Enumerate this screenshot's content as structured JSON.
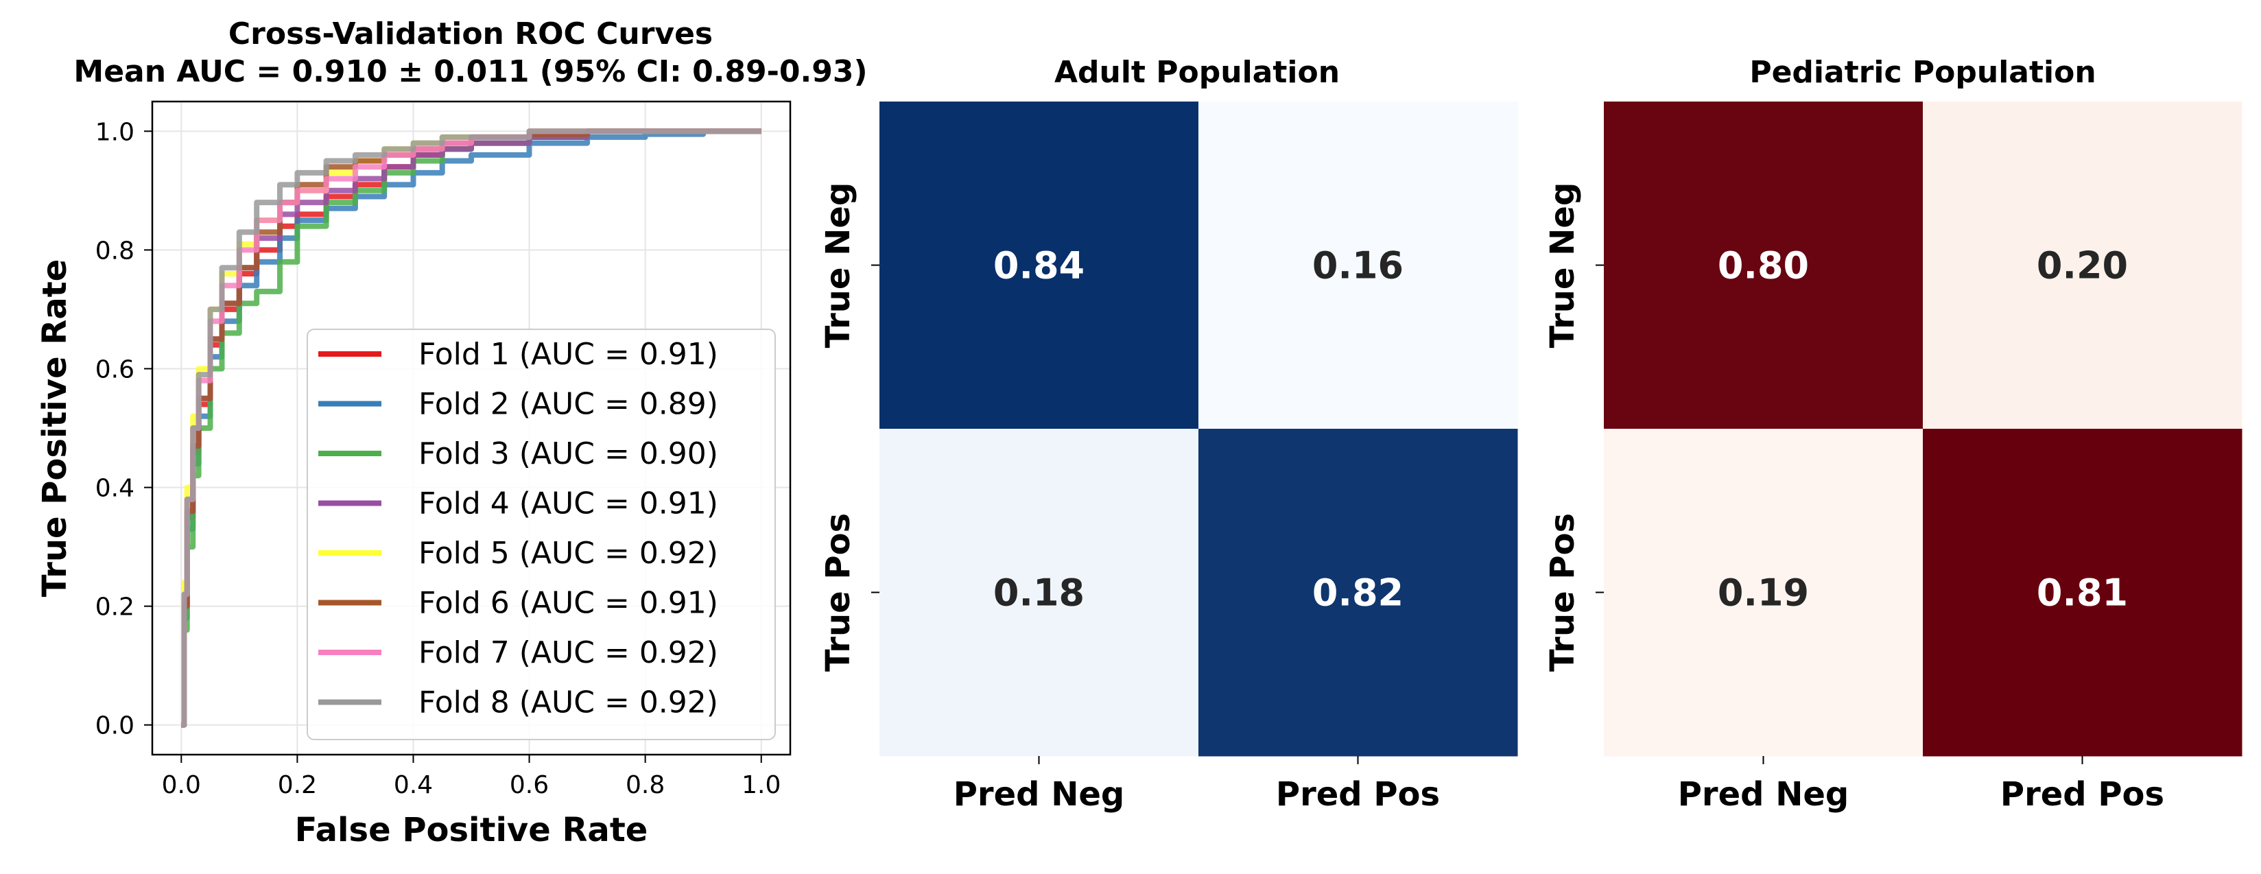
{
  "chart_data": [
    {
      "type": "line",
      "title": "Cross-Validation ROC Curves\nMean AUC = 0.910 ± 0.011 (95% CI: 0.89-0.93)",
      "xlabel": "False Positive Rate",
      "ylabel": "True Positive Rate",
      "xlim": [
        -0.05,
        1.05
      ],
      "ylim": [
        -0.05,
        1.05
      ],
      "xticks": [
        "0.0",
        "0.2",
        "0.4",
        "0.6",
        "0.8",
        "1.0"
      ],
      "yticks": [
        "0.0",
        "0.2",
        "0.4",
        "0.6",
        "0.8",
        "1.0"
      ],
      "grid": true,
      "legend": "lower-right",
      "series": [
        {
          "name": "Fold 1 (AUC = 0.91)",
          "color": "#e41a1c",
          "x": [
            0,
            0.005,
            0.01,
            0.02,
            0.03,
            0.05,
            0.07,
            0.1,
            0.13,
            0.17,
            0.2,
            0.25,
            0.3,
            0.35,
            0.4,
            0.45,
            0.5,
            0.6,
            0.7,
            0.8,
            0.9,
            1.0
          ],
          "y": [
            0,
            0.2,
            0.35,
            0.46,
            0.54,
            0.64,
            0.7,
            0.76,
            0.8,
            0.84,
            0.86,
            0.89,
            0.91,
            0.94,
            0.96,
            0.97,
            0.98,
            0.99,
            1.0,
            1.0,
            1.0,
            1.0
          ]
        },
        {
          "name": "Fold 2 (AUC = 0.89)",
          "color": "#377eb8",
          "x": [
            0,
            0.005,
            0.01,
            0.02,
            0.03,
            0.05,
            0.07,
            0.1,
            0.13,
            0.17,
            0.2,
            0.25,
            0.3,
            0.35,
            0.4,
            0.45,
            0.5,
            0.6,
            0.7,
            0.8,
            0.9,
            1.0
          ],
          "y": [
            0,
            0.18,
            0.33,
            0.44,
            0.52,
            0.62,
            0.68,
            0.74,
            0.78,
            0.82,
            0.85,
            0.87,
            0.89,
            0.91,
            0.93,
            0.95,
            0.96,
            0.98,
            0.99,
            0.995,
            1.0,
            1.0
          ]
        },
        {
          "name": "Fold 3 (AUC = 0.90)",
          "color": "#4daf4a",
          "x": [
            0,
            0.005,
            0.01,
            0.02,
            0.03,
            0.05,
            0.07,
            0.1,
            0.13,
            0.17,
            0.2,
            0.25,
            0.3,
            0.35,
            0.4,
            0.45,
            0.5,
            0.6,
            0.7,
            0.8,
            0.9,
            1.0
          ],
          "y": [
            0,
            0.16,
            0.3,
            0.42,
            0.5,
            0.6,
            0.66,
            0.71,
            0.73,
            0.78,
            0.84,
            0.88,
            0.9,
            0.93,
            0.95,
            0.97,
            0.98,
            0.99,
            1.0,
            1.0,
            1.0,
            1.0
          ]
        },
        {
          "name": "Fold 4 (AUC = 0.91)",
          "color": "#984ea3",
          "x": [
            0,
            0.005,
            0.01,
            0.02,
            0.03,
            0.05,
            0.07,
            0.1,
            0.13,
            0.17,
            0.2,
            0.25,
            0.3,
            0.35,
            0.4,
            0.45,
            0.5,
            0.6,
            0.7,
            0.8,
            0.9,
            1.0
          ],
          "y": [
            0,
            0.2,
            0.36,
            0.47,
            0.55,
            0.65,
            0.71,
            0.77,
            0.82,
            0.86,
            0.88,
            0.9,
            0.92,
            0.94,
            0.96,
            0.97,
            0.98,
            0.99,
            1.0,
            1.0,
            1.0,
            1.0
          ]
        },
        {
          "name": "Fold 5 (AUC = 0.92)",
          "color": "#ffff33",
          "x": [
            0,
            0.005,
            0.01,
            0.02,
            0.03,
            0.05,
            0.07,
            0.1,
            0.13,
            0.17,
            0.2,
            0.25,
            0.3,
            0.35,
            0.4,
            0.45,
            0.5,
            0.6,
            0.7,
            0.8,
            0.9,
            1.0
          ],
          "y": [
            0,
            0.24,
            0.4,
            0.52,
            0.6,
            0.7,
            0.76,
            0.81,
            0.85,
            0.88,
            0.9,
            0.93,
            0.95,
            0.97,
            0.98,
            0.99,
            0.99,
            1.0,
            1.0,
            1.0,
            1.0,
            1.0
          ]
        },
        {
          "name": "Fold 6 (AUC = 0.91)",
          "color": "#a65628",
          "x": [
            0,
            0.005,
            0.01,
            0.02,
            0.03,
            0.05,
            0.07,
            0.1,
            0.13,
            0.17,
            0.2,
            0.25,
            0.3,
            0.35,
            0.4,
            0.45,
            0.5,
            0.6,
            0.7,
            0.8,
            0.9,
            1.0
          ],
          "y": [
            0,
            0.2,
            0.36,
            0.47,
            0.55,
            0.65,
            0.71,
            0.77,
            0.83,
            0.88,
            0.91,
            0.94,
            0.95,
            0.96,
            0.97,
            0.98,
            0.99,
            0.995,
            1.0,
            1.0,
            1.0,
            1.0
          ]
        },
        {
          "name": "Fold 7 (AUC = 0.92)",
          "color": "#f781bf",
          "x": [
            0,
            0.005,
            0.01,
            0.02,
            0.03,
            0.05,
            0.07,
            0.1,
            0.13,
            0.17,
            0.2,
            0.25,
            0.3,
            0.35,
            0.4,
            0.45,
            0.5,
            0.6,
            0.7,
            0.8,
            0.9,
            1.0
          ],
          "y": [
            0,
            0.22,
            0.38,
            0.5,
            0.58,
            0.68,
            0.74,
            0.8,
            0.85,
            0.88,
            0.9,
            0.92,
            0.94,
            0.96,
            0.97,
            0.98,
            0.99,
            1.0,
            1.0,
            1.0,
            1.0,
            1.0
          ]
        },
        {
          "name": "Fold 8 (AUC = 0.92)",
          "color": "#999999",
          "x": [
            0,
            0.005,
            0.01,
            0.02,
            0.03,
            0.05,
            0.07,
            0.1,
            0.13,
            0.17,
            0.2,
            0.25,
            0.3,
            0.35,
            0.4,
            0.45,
            0.5,
            0.6,
            0.7,
            0.8,
            0.9,
            1.0
          ],
          "y": [
            0,
            0.22,
            0.38,
            0.5,
            0.59,
            0.7,
            0.77,
            0.83,
            0.88,
            0.91,
            0.93,
            0.95,
            0.96,
            0.97,
            0.98,
            0.99,
            0.99,
            1.0,
            1.0,
            1.0,
            1.0,
            1.0
          ]
        }
      ]
    },
    {
      "type": "heatmap",
      "title": "Adult Population",
      "x_categories": [
        "Pred Neg",
        "Pred Pos"
      ],
      "y_categories": [
        "True Neg",
        "True Pos"
      ],
      "values": [
        [
          0.84,
          0.16
        ],
        [
          0.18,
          0.82
        ]
      ],
      "labels": [
        [
          "0.84",
          "0.16"
        ],
        [
          "0.18",
          "0.82"
        ]
      ],
      "colormap": "Blues",
      "low_color": "#f7fbff",
      "high_color": "#08306b"
    },
    {
      "type": "heatmap",
      "title": "Pediatric Population",
      "x_categories": [
        "Pred Neg",
        "Pred Pos"
      ],
      "y_categories": [
        "True Neg",
        "True Pos"
      ],
      "values": [
        [
          0.8,
          0.2
        ],
        [
          0.19,
          0.81
        ]
      ],
      "labels": [
        [
          "0.80",
          "0.20"
        ],
        [
          "0.19",
          "0.81"
        ]
      ],
      "colormap": "Reds",
      "low_color": "#fff5f0",
      "high_color": "#67000d"
    }
  ]
}
